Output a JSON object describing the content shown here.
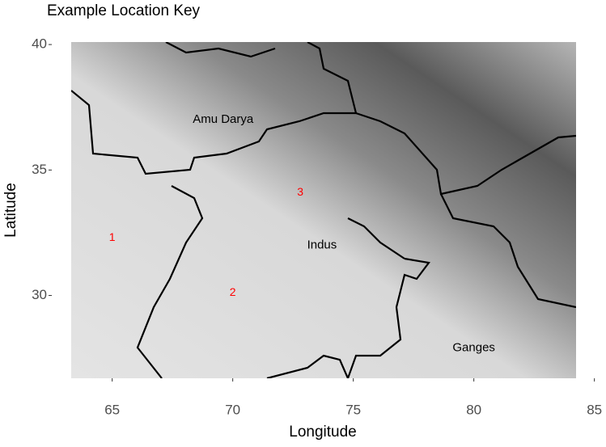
{
  "chart_data": {
    "type": "map",
    "title": "Example Location Key",
    "x_label": "Longitude",
    "y_label": "Latitude",
    "xlim": [
      63.3,
      85.5
    ],
    "ylim": [
      26.7,
      40.1
    ],
    "xticks": [
      65,
      70,
      75,
      80,
      85
    ],
    "yticks": [
      30,
      35,
      40
    ],
    "regions": [
      {
        "name": "Amu Darya",
        "x": 69.6,
        "y": 37.0
      },
      {
        "name": "Indus",
        "x": 73.7,
        "y": 32.0
      },
      {
        "name": "Ganges",
        "x": 80.0,
        "y": 27.9
      }
    ],
    "locations": [
      {
        "label": "1",
        "x": 65.0,
        "y": 32.3
      },
      {
        "label": "2",
        "x": 70.0,
        "y": 30.1
      },
      {
        "label": "3",
        "x": 72.8,
        "y": 34.1
      }
    ],
    "location_color": "#ff0000"
  }
}
